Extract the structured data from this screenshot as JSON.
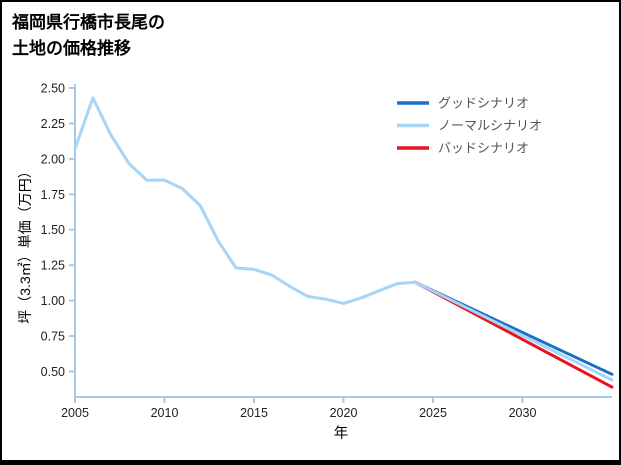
{
  "title": {
    "line1": "福岡県行橋市長尾の",
    "line2": "土地の価格推移"
  },
  "chart_data": {
    "type": "line",
    "title": "福岡県行橋市長尾の土地の価格推移",
    "xlabel": "年",
    "ylabel": "坪（3.3㎡）単価（万円）",
    "xlim": [
      2005,
      2035
    ],
    "ylim": [
      0.32,
      2.5
    ],
    "xticks": [
      2005,
      2010,
      2015,
      2020,
      2025,
      2030
    ],
    "yticks": [
      0.5,
      0.75,
      1.0,
      1.25,
      1.5,
      1.75,
      2.0,
      2.25,
      2.5
    ],
    "grid": false,
    "legend_position": "upper right",
    "axis_color": "#a9c9e6",
    "tick_label_color": "#222222",
    "legend_label_color": "#555555",
    "draw_order": [
      2,
      0,
      1
    ],
    "series": [
      {
        "name": "グッドシナリオ",
        "color": "#1a6fc9",
        "x": [
          2024,
          2035
        ],
        "y": [
          1.13,
          0.48
        ]
      },
      {
        "name": "ノーマルシナリオ",
        "color": "#a8d4f5",
        "x": [
          2005,
          2006,
          2007,
          2008,
          2009,
          2010,
          2011,
          2012,
          2013,
          2014,
          2015,
          2016,
          2017,
          2018,
          2019,
          2020,
          2021,
          2022,
          2023,
          2024,
          2035
        ],
        "y": [
          2.07,
          2.43,
          2.17,
          1.97,
          1.85,
          1.85,
          1.79,
          1.67,
          1.42,
          1.23,
          1.22,
          1.18,
          1.1,
          1.03,
          1.01,
          0.98,
          1.02,
          1.07,
          1.12,
          1.13,
          0.44
        ]
      },
      {
        "name": "バッドシナリオ",
        "color": "#e8131d",
        "x": [
          2024,
          2035
        ],
        "y": [
          1.13,
          0.39
        ]
      }
    ]
  }
}
